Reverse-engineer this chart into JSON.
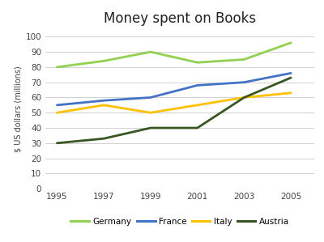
{
  "title": "Money spent on Books",
  "ylabel": "$ US dollars (millions)",
  "years": [
    1995,
    1997,
    1999,
    2001,
    2003,
    2005
  ],
  "series": {
    "Germany": {
      "values": [
        80,
        84,
        90,
        83,
        85,
        96
      ],
      "color": "#92d050",
      "linewidth": 2.0
    },
    "France": {
      "values": [
        55,
        58,
        60,
        68,
        70,
        76
      ],
      "color": "#4472c4",
      "linewidth": 2.0
    },
    "Italy": {
      "values": [
        50,
        55,
        50,
        55,
        60,
        63
      ],
      "color": "#ffc000",
      "linewidth": 2.0
    },
    "Austria": {
      "values": [
        30,
        33,
        40,
        40,
        60,
        73
      ],
      "color": "#375623",
      "linewidth": 2.0
    }
  },
  "ylim": [
    0,
    105
  ],
  "yticks": [
    0,
    10,
    20,
    30,
    40,
    50,
    60,
    70,
    80,
    90,
    100
  ],
  "xlim": [
    1994.5,
    2006
  ],
  "legend_order": [
    "Germany",
    "France",
    "Italy",
    "Austria"
  ],
  "background_color": "#ffffff",
  "grid_color": "#d0d0d0",
  "title_fontsize": 12,
  "axis_label_fontsize": 7,
  "tick_fontsize": 7.5,
  "legend_fontsize": 7.5
}
